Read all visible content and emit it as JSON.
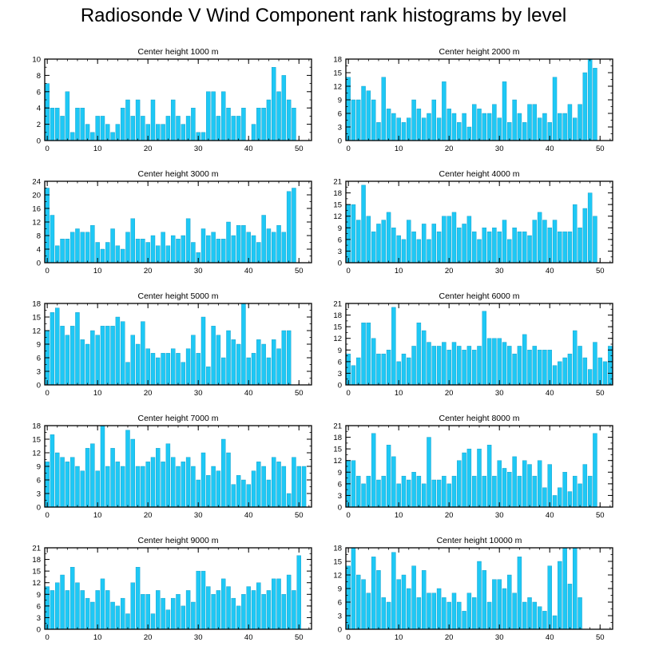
{
  "title": "Radiosonde V Wind Component rank histograms by level",
  "chart_data": [
    {
      "type": "bar",
      "title": "Center height 1000 m",
      "ylim": [
        0,
        10
      ],
      "yticks": [
        0,
        2,
        4,
        6,
        8,
        10
      ],
      "xlim": [
        -0.5,
        52.5
      ],
      "xticks": [
        0,
        10,
        20,
        30,
        40,
        50
      ],
      "values": [
        7,
        4,
        4,
        3,
        6,
        1,
        4,
        4,
        2,
        1,
        3,
        3,
        2,
        1,
        2,
        4,
        5,
        3,
        5,
        3,
        2,
        5,
        2,
        2,
        3,
        5,
        3,
        2,
        3,
        4,
        1,
        1,
        6,
        6,
        3,
        6,
        4,
        3,
        3,
        4,
        0,
        2,
        4,
        4,
        5,
        9,
        6,
        8,
        5,
        4,
        0
      ]
    },
    {
      "type": "bar",
      "title": "Center height 2000 m",
      "ylim": [
        0,
        18
      ],
      "yticks": [
        0,
        3,
        6,
        9,
        12,
        15,
        18
      ],
      "xlim": [
        -0.5,
        52.5
      ],
      "xticks": [
        0,
        10,
        20,
        30,
        40,
        50
      ],
      "values": [
        14,
        9,
        9,
        12,
        11,
        9,
        4,
        14,
        7,
        6,
        5,
        4,
        5,
        9,
        7,
        5,
        6,
        9,
        5,
        13,
        7,
        6,
        4,
        6,
        3,
        8,
        7,
        6,
        6,
        8,
        5,
        13,
        4,
        9,
        6,
        4,
        8,
        8,
        5,
        6,
        4,
        14,
        6,
        6,
        8,
        5,
        8,
        15,
        18,
        16,
        0
      ]
    },
    {
      "type": "bar",
      "title": "Center height 3000 m",
      "ylim": [
        0,
        24
      ],
      "yticks": [
        0,
        4,
        8,
        12,
        16,
        20,
        24
      ],
      "xlim": [
        -0.5,
        52.5
      ],
      "xticks": [
        0,
        10,
        20,
        30,
        40,
        50
      ],
      "values": [
        22,
        14,
        5,
        7,
        7,
        9,
        10,
        9,
        9,
        11,
        6,
        4,
        6,
        10,
        5,
        4,
        9,
        13,
        7,
        7,
        6,
        8,
        5,
        9,
        5,
        8,
        7,
        8,
        13,
        6,
        3,
        10,
        8,
        9,
        7,
        7,
        12,
        8,
        11,
        11,
        9,
        8,
        6,
        14,
        10,
        9,
        11,
        9,
        21,
        22,
        0
      ]
    },
    {
      "type": "bar",
      "title": "Center height 4000 m",
      "ylim": [
        0,
        21
      ],
      "yticks": [
        0,
        3,
        6,
        9,
        12,
        15,
        18,
        21
      ],
      "xlim": [
        -0.5,
        52.5
      ],
      "xticks": [
        0,
        10,
        20,
        30,
        40,
        50
      ],
      "values": [
        15,
        15,
        11,
        20,
        12,
        8,
        10,
        11,
        13,
        9,
        7,
        6,
        11,
        8,
        6,
        10,
        6,
        10,
        8,
        12,
        12,
        13,
        9,
        10,
        12,
        8,
        6,
        9,
        8,
        9,
        8,
        11,
        6,
        9,
        8,
        8,
        7,
        11,
        13,
        11,
        9,
        11,
        8,
        8,
        8,
        15,
        9,
        14,
        18,
        12,
        0
      ]
    },
    {
      "type": "bar",
      "title": "Center height 5000 m",
      "ylim": [
        0,
        18
      ],
      "yticks": [
        0,
        3,
        6,
        9,
        12,
        15,
        18
      ],
      "xlim": [
        -0.5,
        52.5
      ],
      "xticks": [
        0,
        10,
        20,
        30,
        40,
        50
      ],
      "values": [
        12,
        16,
        17,
        13,
        11,
        13,
        16,
        10,
        9,
        12,
        11,
        13,
        13,
        13,
        15,
        14,
        5,
        11,
        9,
        14,
        8,
        7,
        6,
        7,
        7,
        8,
        7,
        5,
        8,
        11,
        7,
        15,
        4,
        13,
        11,
        6,
        12,
        10,
        9,
        18,
        6,
        7,
        10,
        9,
        6,
        10,
        8,
        12,
        12,
        0,
        0
      ]
    },
    {
      "type": "bar",
      "title": "Center height 6000 m",
      "ylim": [
        0,
        21
      ],
      "yticks": [
        0,
        3,
        6,
        9,
        12,
        15,
        18,
        21
      ],
      "xlim": [
        -0.5,
        52.5
      ],
      "xticks": [
        0,
        10,
        20,
        30,
        40,
        50
      ],
      "values": [
        8,
        5,
        7,
        16,
        16,
        12,
        8,
        8,
        9,
        20,
        6,
        8,
        7,
        10,
        16,
        14,
        11,
        10,
        10,
        11,
        9,
        11,
        10,
        9,
        10,
        9,
        10,
        19,
        12,
        12,
        12,
        11,
        10,
        8,
        10,
        13,
        9,
        10,
        9,
        9,
        9,
        5,
        6,
        7,
        8,
        14,
        10,
        7,
        4,
        11,
        7,
        6,
        10,
        0
      ]
    },
    {
      "type": "bar",
      "title": "Center height 7000 m",
      "ylim": [
        0,
        18
      ],
      "yticks": [
        0,
        3,
        6,
        9,
        12,
        15,
        18
      ],
      "xlim": [
        -0.5,
        52.5
      ],
      "xticks": [
        0,
        10,
        20,
        30,
        40,
        50
      ],
      "values": [
        10,
        16,
        12,
        11,
        10,
        11,
        9,
        8,
        13,
        14,
        8,
        18,
        9,
        13,
        10,
        9,
        17,
        15,
        9,
        9,
        10,
        11,
        13,
        10,
        14,
        11,
        9,
        10,
        11,
        9,
        6,
        12,
        7,
        9,
        8,
        15,
        12,
        5,
        7,
        6,
        5,
        8,
        10,
        9,
        6,
        11,
        10,
        9,
        3,
        11,
        9,
        9,
        0
      ]
    },
    {
      "type": "bar",
      "title": "Center height 8000 m",
      "ylim": [
        0,
        21
      ],
      "yticks": [
        0,
        3,
        6,
        9,
        12,
        15,
        18,
        21
      ],
      "xlim": [
        -0.5,
        52.5
      ],
      "xticks": [
        0,
        10,
        20,
        30,
        40,
        50
      ],
      "values": [
        12,
        12,
        8,
        6,
        8,
        19,
        7,
        8,
        16,
        13,
        6,
        8,
        7,
        9,
        8,
        6,
        18,
        7,
        7,
        8,
        6,
        8,
        12,
        14,
        15,
        8,
        15,
        8,
        16,
        8,
        12,
        10,
        9,
        13,
        8,
        12,
        11,
        8,
        12,
        5,
        11,
        3,
        5,
        9,
        4,
        8,
        6,
        11,
        8,
        19,
        0
      ]
    },
    {
      "type": "bar",
      "title": "Center height 9000 m",
      "ylim": [
        0,
        21
      ],
      "yticks": [
        0,
        3,
        6,
        9,
        12,
        15,
        18,
        21
      ],
      "xlim": [
        -0.5,
        52.5
      ],
      "xticks": [
        0,
        10,
        20,
        30,
        40,
        50
      ],
      "values": [
        11,
        10,
        12,
        14,
        10,
        16,
        12,
        10,
        8,
        7,
        10,
        13,
        10,
        7,
        6,
        8,
        4,
        12,
        16,
        9,
        9,
        4,
        10,
        8,
        5,
        8,
        9,
        6,
        10,
        7,
        15,
        15,
        11,
        9,
        10,
        13,
        11,
        8,
        6,
        9,
        11,
        10,
        12,
        9,
        10,
        13,
        13,
        9,
        14,
        10,
        19,
        0
      ]
    },
    {
      "type": "bar",
      "title": "Center height 10000 m",
      "ylim": [
        0,
        18
      ],
      "yticks": [
        0,
        3,
        6,
        9,
        12,
        15,
        18
      ],
      "xlim": [
        -0.5,
        52.5
      ],
      "xticks": [
        0,
        10,
        20,
        30,
        40,
        50
      ],
      "values": [
        14,
        18,
        12,
        11,
        8,
        16,
        13,
        7,
        6,
        17,
        11,
        12,
        9,
        14,
        7,
        13,
        8,
        8,
        9,
        7,
        6,
        8,
        6,
        4,
        8,
        7,
        15,
        13,
        6,
        11,
        11,
        9,
        12,
        8,
        16,
        6,
        7,
        6,
        5,
        4,
        14,
        3,
        15,
        18,
        10,
        18,
        7,
        0
      ]
    }
  ]
}
